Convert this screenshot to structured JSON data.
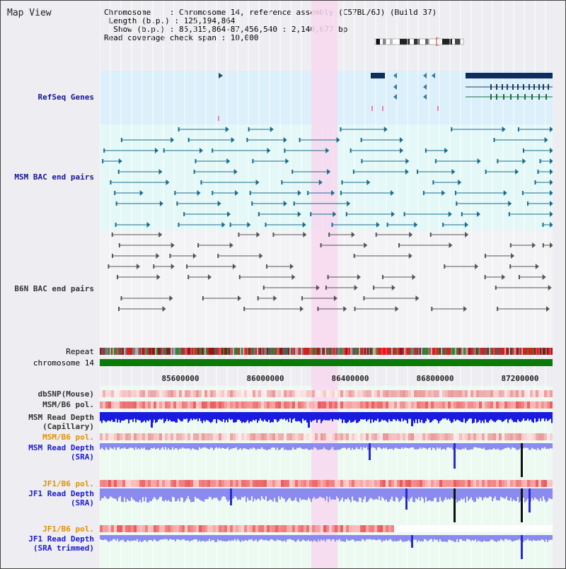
{
  "view": {
    "title": "Map View",
    "region_start": 85315864,
    "region_end": 87456540,
    "highlight_start": 86315864,
    "highlight_end": 86440000
  },
  "info": {
    "chromosome": "Chromosome    : Chromosome 14, reference assembly (C57BL/6J) (Build 37)",
    "length": " Length (b.p.) : 125,194,864",
    "show": "  Show (b.p.) : 85,315,864-87,456,540 : 2,140,677 bp",
    "span": "Read coverage check span : 10,000"
  },
  "tracks": {
    "refseq": "RefSeq Genes",
    "msm_bac": "MSM BAC end pairs",
    "b6n_bac": "B6N BAC end pairs",
    "repeat": "Repeat",
    "chromosome": "chromosome 14",
    "dbsnp": "dbSNP(Mouse)",
    "msm_b6_pol_1": "MSM/B6 pol.",
    "msm_depth_cap_1": "MSM Read Depth",
    "msm_depth_cap_2": "(Capillary)",
    "msm_b6_pol_2": "MSM/B6 pol.",
    "msm_depth_sra_1": "MSM Read Depth",
    "msm_depth_sra_2": "(SRA)",
    "jf1_b6_pol_1": "JF1/B6 pol.",
    "jf1_depth_sra_1": "JF1 Read Depth",
    "jf1_depth_sra_2": "(SRA)",
    "jf1_b6_pol_2": "JF1/B6 pol.",
    "jf1_depth_trim_1": "JF1 Read Depth",
    "jf1_depth_trim_2": "(SRA trimmed)"
  },
  "axis": {
    "ticks": [
      "85600000",
      "86000000",
      "86400000",
      "86800000",
      "87200000"
    ],
    "tick_values": [
      85600000,
      86000000,
      86400000,
      86800000,
      87200000
    ]
  },
  "colors": {
    "refseq_bg": "#dbf0fb",
    "bac_bg": "#e4f8f8",
    "highlight": "#f8d8f0",
    "gene": "#0f2c5e",
    "msm_bac": "#1c6c8c",
    "b6n_bac": "#555555",
    "chromosome_bar": "#0a7a0a",
    "depth_blue": "#1a1ae0",
    "depth_light": "#8a8af0",
    "pol_red": "#e83030"
  }
}
